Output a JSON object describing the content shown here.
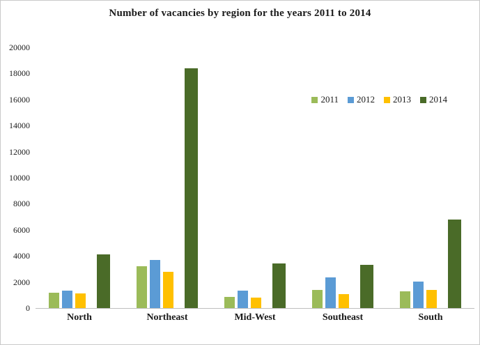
{
  "chart_data": {
    "type": "bar",
    "title": "Number of vacancies by region for the years 2011 to 2014",
    "categories": [
      "North",
      "Northeast",
      "Mid-West",
      "Southeast",
      "South"
    ],
    "series": [
      {
        "name": "2011",
        "color": "#9bbb59",
        "values": [
          1200,
          3200,
          850,
          1400,
          1300
        ]
      },
      {
        "name": "2012",
        "color": "#5b9bd5",
        "values": [
          1350,
          3700,
          1350,
          2350,
          2050
        ]
      },
      {
        "name": "2013",
        "color": "#ffc000",
        "values": [
          1100,
          2800,
          800,
          1050,
          1400
        ]
      },
      {
        "name": "2014",
        "color": "#4a6b28",
        "values": [
          4100,
          18400,
          3400,
          3300,
          6800
        ]
      }
    ],
    "xlabel": "",
    "ylabel": "",
    "ylim": [
      0,
      20000
    ],
    "ytick_step": 2000,
    "ytick_labels": [
      "20000",
      "18000",
      "16000",
      "14000",
      "12000",
      "10000",
      "8000",
      "6000",
      "4000",
      "2000",
      "0"
    ],
    "grid": false,
    "legend_position": "right-middle"
  }
}
